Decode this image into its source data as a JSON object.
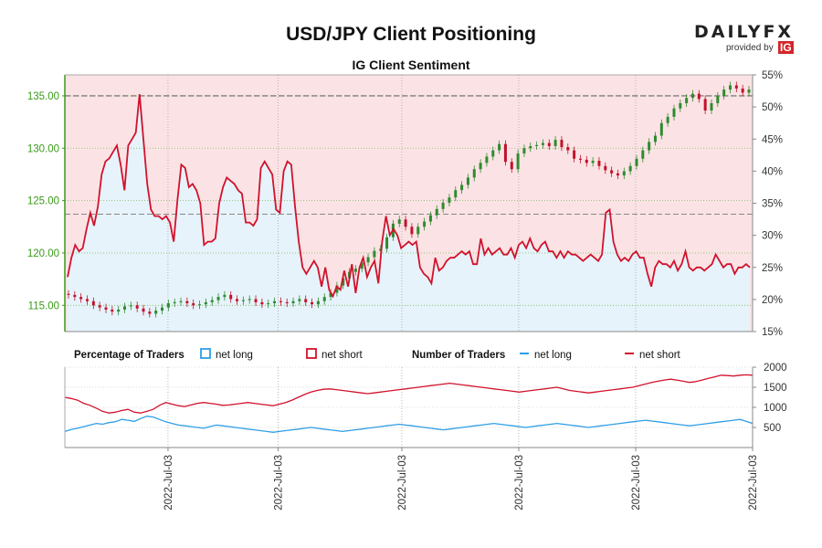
{
  "brand": {
    "name": "DAILYFX",
    "sub": "provided by",
    "ig": "IG"
  },
  "chart_data": {
    "type": "line",
    "title": "USD/JPY Client Positioning",
    "subtitle": "IG Client Sentiment",
    "price_axis": {
      "ylim": [
        112.5,
        137.0
      ],
      "ticks": [
        "115.00",
        "120.00",
        "125.00",
        "130.00",
        "135.00"
      ],
      "tick_values": [
        115,
        120,
        125,
        130,
        135
      ]
    },
    "percent_axis": {
      "ylim": [
        15,
        55
      ],
      "ticks": [
        "15%",
        "20%",
        "25%",
        "30%",
        "35%",
        "40%",
        "45%",
        "50%",
        "55%"
      ],
      "tick_values": [
        15,
        20,
        25,
        30,
        35,
        40,
        45,
        50,
        55
      ]
    },
    "traders_axis": {
      "ylim": [
        0,
        2000
      ],
      "ticks": [
        "500",
        "1000",
        "1500",
        "2000"
      ],
      "tick_values": [
        500,
        1000,
        1500,
        2000
      ]
    },
    "x_ticks": [
      "2022-Jul-03",
      "2022-Jul-03",
      "2022-Jul-03",
      "2022-Jul-03",
      "2022-Jul-03",
      "2022-Jul-03"
    ],
    "x_tick_positions": [
      0.15,
      0.31,
      0.49,
      0.66,
      0.83,
      1.0
    ],
    "reference_lines": {
      "price_135": 135.0,
      "percent_50": 50,
      "percent_33": 33.3
    },
    "legend": {
      "pct_title": "Percentage of Traders",
      "pct_long": "net long",
      "pct_short": "net short",
      "num_title": "Number of Traders",
      "num_long": "net long",
      "num_short": "net short"
    },
    "colors": {
      "long": "#2f9ee6",
      "short": "#d1122c",
      "long_fill": "#e6f3fb",
      "short_fill": "#fbe3e5",
      "up": "#2e8b2e",
      "down": "#c1122c",
      "axis_green": "#3a9a1a"
    },
    "net_long_pct": [
      23.5,
      26.5,
      28.5,
      27.5,
      28,
      31,
      33.5,
      31.5,
      34.5,
      39.5,
      41.5,
      42,
      43,
      44,
      41,
      37,
      44,
      45,
      46,
      52,
      45,
      38,
      34,
      33,
      33,
      32.5,
      33,
      32,
      29,
      35.5,
      41,
      40.5,
      37.5,
      38,
      37,
      35,
      28.5,
      29,
      29,
      29.5,
      35,
      37.5,
      39,
      38.5,
      38,
      37,
      36.5,
      32,
      32,
      31.5,
      32.5,
      40.5,
      41.5,
      40.5,
      39.5,
      34,
      33.5,
      40,
      41.5,
      41,
      34.5,
      29,
      25,
      24,
      25,
      26,
      25,
      22,
      25,
      21.5,
      20.5,
      22,
      21.5,
      24.5,
      22,
      25.5,
      21,
      25,
      26.5,
      23.5,
      25,
      26,
      22.5,
      29,
      33,
      30,
      31,
      30,
      28,
      28.5,
      29,
      28.5,
      29,
      25,
      24,
      23.5,
      22.5,
      26.5,
      24.5,
      25,
      26,
      26.5,
      26.5,
      27,
      27.5,
      27,
      27.5,
      25.5,
      25.5,
      29.5,
      27,
      28,
      27,
      27.5,
      28,
      27,
      27,
      28,
      26.5,
      28.5,
      29,
      28,
      29.5,
      28,
      27.5,
      28.5,
      29,
      27.5,
      27.5,
      26.5,
      27.5,
      26.5,
      27.5,
      27,
      27,
      26.5,
      26,
      26.5,
      27,
      26.5,
      26,
      27,
      33.5,
      34,
      29,
      27,
      26,
      26.5,
      26,
      27,
      27.5,
      26.5,
      26.5,
      24,
      22,
      25,
      26,
      25.5,
      25.5,
      25,
      26,
      24.5,
      25.5,
      27.5,
      25,
      24.5,
      25,
      25,
      24.5,
      25,
      25.5,
      27,
      26,
      25,
      25.5,
      25.5,
      24,
      25,
      25,
      25.5,
      25
    ],
    "price_open": [
      116.1,
      116.0,
      115.8,
      115.6,
      115.4,
      115.0,
      114.8,
      114.6,
      114.4,
      114.6,
      114.9,
      115.0,
      114.7,
      114.4,
      114.2,
      114.5,
      114.8,
      115.2,
      115.3,
      115.4,
      115.2,
      115.0,
      115.1,
      115.3,
      115.5,
      115.8,
      116.0,
      115.6,
      115.4,
      115.5,
      115.6,
      115.3,
      115.1,
      115.2,
      115.4,
      115.3,
      115.2,
      115.4,
      115.6,
      115.3,
      115.1,
      115.4,
      115.8,
      116.2,
      116.9,
      117.6,
      118.2,
      118.5,
      119.1,
      119.6,
      120.2,
      120.4,
      121.5,
      122.8,
      123.2,
      122.5,
      121.8,
      122.5,
      123.0,
      123.6,
      124.2,
      124.8,
      125.3,
      126.0,
      126.5,
      127.2,
      128.0,
      128.6,
      129.2,
      129.8,
      130.4,
      128.7,
      128.0,
      129.5,
      130.0,
      130.2,
      130.3,
      130.5,
      130.2,
      130.8,
      130.1,
      129.8,
      129.0,
      128.9,
      128.6,
      128.8,
      128.3,
      127.9,
      127.6,
      127.4,
      127.8,
      128.3,
      129.0,
      129.8,
      130.6,
      131.2,
      132.4,
      133.0,
      133.8,
      134.3,
      134.8,
      135.2,
      134.7,
      133.6,
      134.3,
      135.0,
      135.6,
      136.0,
      135.7,
      135.3
    ],
    "price_close": [
      116.0,
      115.8,
      115.6,
      115.4,
      115.0,
      114.8,
      114.6,
      114.4,
      114.6,
      114.9,
      115.0,
      114.7,
      114.4,
      114.2,
      114.5,
      114.8,
      115.2,
      115.3,
      115.4,
      115.2,
      115.0,
      115.1,
      115.3,
      115.5,
      115.8,
      116.0,
      115.6,
      115.4,
      115.5,
      115.6,
      115.3,
      115.1,
      115.2,
      115.4,
      115.3,
      115.2,
      115.4,
      115.6,
      115.3,
      115.1,
      115.4,
      115.8,
      116.2,
      116.9,
      117.6,
      118.2,
      118.5,
      119.1,
      119.6,
      120.2,
      120.4,
      121.5,
      122.8,
      123.2,
      122.5,
      121.8,
      122.5,
      123.0,
      123.6,
      124.2,
      124.8,
      125.3,
      126.0,
      126.5,
      127.2,
      128.0,
      128.6,
      129.2,
      129.8,
      130.4,
      128.7,
      128.0,
      129.5,
      130.0,
      130.2,
      130.3,
      130.5,
      130.2,
      130.8,
      130.1,
      129.8,
      129.0,
      128.9,
      128.6,
      128.8,
      128.3,
      127.9,
      127.6,
      127.4,
      127.8,
      128.3,
      129.0,
      129.8,
      130.6,
      131.2,
      132.4,
      133.0,
      133.8,
      134.3,
      134.8,
      135.2,
      134.7,
      133.6,
      134.3,
      135.0,
      135.6,
      136.0,
      135.7,
      135.3,
      135.6
    ],
    "num_long": [
      400,
      450,
      480,
      520,
      560,
      600,
      580,
      620,
      640,
      700,
      680,
      650,
      720,
      780,
      760,
      700,
      640,
      600,
      560,
      540,
      520,
      500,
      480,
      520,
      560,
      540,
      520,
      500,
      480,
      460,
      440,
      420,
      400,
      380,
      400,
      420,
      440,
      460,
      480,
      500,
      480,
      460,
      440,
      420,
      400,
      420,
      440,
      460,
      480,
      500,
      520,
      540,
      560,
      580,
      560,
      540,
      520,
      500,
      480,
      460,
      440,
      460,
      480,
      500,
      520,
      540,
      560,
      580,
      600,
      580,
      560,
      540,
      520,
      500,
      520,
      540,
      560,
      580,
      600,
      580,
      560,
      540,
      520,
      500,
      520,
      540,
      560,
      580,
      600,
      620,
      640,
      660,
      680,
      660,
      640,
      620,
      600,
      580,
      560,
      540,
      560,
      580,
      600,
      620,
      640,
      660,
      680,
      700,
      650,
      600
    ],
    "num_short": [
      1250,
      1220,
      1180,
      1100,
      1050,
      980,
      900,
      860,
      880,
      920,
      950,
      880,
      860,
      900,
      950,
      1050,
      1120,
      1080,
      1040,
      1020,
      1060,
      1100,
      1120,
      1100,
      1080,
      1050,
      1060,
      1080,
      1100,
      1120,
      1100,
      1080,
      1060,
      1040,
      1080,
      1120,
      1180,
      1250,
      1320,
      1380,
      1420,
      1450,
      1460,
      1440,
      1420,
      1400,
      1380,
      1360,
      1340,
      1360,
      1380,
      1400,
      1420,
      1440,
      1460,
      1480,
      1500,
      1520,
      1540,
      1560,
      1580,
      1600,
      1580,
      1560,
      1540,
      1520,
      1500,
      1480,
      1460,
      1440,
      1420,
      1400,
      1380,
      1400,
      1420,
      1440,
      1460,
      1480,
      1500,
      1460,
      1420,
      1400,
      1380,
      1360,
      1380,
      1400,
      1420,
      1440,
      1460,
      1480,
      1500,
      1540,
      1580,
      1620,
      1650,
      1680,
      1700,
      1680,
      1650,
      1620,
      1640,
      1680,
      1720,
      1760,
      1800,
      1790,
      1780,
      1800,
      1810,
      1800
    ]
  }
}
